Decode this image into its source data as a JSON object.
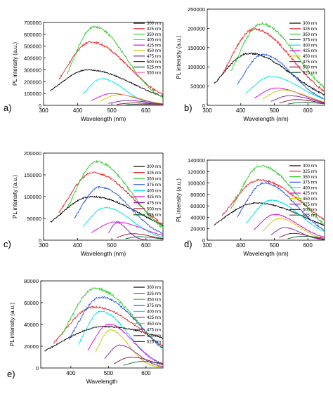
{
  "colors": {
    "300 nm": "#000000",
    "325 nm": "#e8262b",
    "350 nm": "#33cc33",
    "375 nm": "#2b55e0",
    "400 nm": "#00e5e5",
    "425 nm": "#e000e0",
    "450 nm": "#c8c800",
    "475 nm": "#7a1fb0",
    "500 nm": "#8b0a2a",
    "525 nm": "#0a5c2a",
    "550 nm": "#ff66b3"
  },
  "chart_data": [
    {
      "panel_label": "a)",
      "type": "line",
      "xlabel": "Wavelength (nm)",
      "ylabel": "PL intensity (a.u.)",
      "xlim": [
        300,
        650
      ],
      "ylim": [
        0,
        700000
      ],
      "xticks": [
        "300",
        "400",
        "500",
        "600"
      ],
      "yticks": [
        "0",
        "100000",
        "200000",
        "300000",
        "400000",
        "500000",
        "600000",
        "700000"
      ],
      "legend_position": "top-right",
      "series": [
        {
          "name": "300 nm",
          "start": 320,
          "peak": 430,
          "value": 300000
        },
        {
          "name": "325 nm",
          "start": 345,
          "peak": 438,
          "value": 535000
        },
        {
          "name": "350 nm",
          "start": 370,
          "peak": 448,
          "value": 665000
        },
        {
          "name": "400 nm",
          "start": 415,
          "peak": 470,
          "value": 225000
        },
        {
          "name": "425 nm",
          "start": 440,
          "peak": 500,
          "value": 100000
        },
        {
          "name": "450 nm",
          "start": 465,
          "peak": 520,
          "value": 90000
        },
        {
          "name": "475 nm",
          "start": 490,
          "peak": 545,
          "value": 40000
        },
        {
          "name": "500 nm",
          "start": 515,
          "peak": 565,
          "value": 20000
        },
        {
          "name": "525 nm",
          "start": 540,
          "peak": 585,
          "value": 10000
        },
        {
          "name": "550 nm",
          "start": 565,
          "peak": 605,
          "value": 5000
        }
      ]
    },
    {
      "panel_label": "b)",
      "type": "line",
      "xlabel": "Wavelength (nm)",
      "ylabel": "PL intensity (a.u.)",
      "xlim": [
        300,
        650
      ],
      "ylim": [
        0,
        250000
      ],
      "xticks": [
        "300",
        "400",
        "500",
        "600"
      ],
      "yticks": [
        "0",
        "50000",
        "100000",
        "150000",
        "200000",
        "250000"
      ],
      "legend_position": "top-right",
      "series": [
        {
          "name": "300 nm",
          "start": 320,
          "peak": 425,
          "value": 135000
        },
        {
          "name": "325 nm",
          "start": 345,
          "peak": 440,
          "value": 198000
        },
        {
          "name": "350 nm",
          "start": 370,
          "peak": 460,
          "value": 212000
        },
        {
          "name": "375 nm",
          "start": 390,
          "peak": 465,
          "value": 132000
        },
        {
          "name": "400 nm",
          "start": 415,
          "peak": 490,
          "value": 75000
        },
        {
          "name": "425 nm",
          "start": 440,
          "peak": 505,
          "value": 45000
        },
        {
          "name": "450 nm",
          "start": 465,
          "peak": 525,
          "value": 40000
        },
        {
          "name": "475 nm",
          "start": 490,
          "peak": 545,
          "value": 25000
        },
        {
          "name": "500 nm",
          "start": 515,
          "peak": 565,
          "value": 15000
        },
        {
          "name": "525 nm",
          "start": 540,
          "peak": 585,
          "value": 8000
        }
      ]
    },
    {
      "panel_label": "c)",
      "type": "line",
      "xlabel": "Wavelength (nm)",
      "ylabel": "PL intensity (a.u.)",
      "xlim": [
        300,
        650
      ],
      "ylim": [
        0,
        200000
      ],
      "xticks": [
        "300",
        "400",
        "500",
        "600"
      ],
      "yticks": [
        "0",
        "50000",
        "100000",
        "150000",
        "200000"
      ],
      "legend_position": "top-right",
      "series": [
        {
          "name": "300 nm",
          "start": 320,
          "peak": 440,
          "value": 100000
        },
        {
          "name": "325 nm",
          "start": 345,
          "peak": 445,
          "value": 155000
        },
        {
          "name": "350 nm",
          "start": 370,
          "peak": 455,
          "value": 180000
        },
        {
          "name": "375 nm",
          "start": 390,
          "peak": 465,
          "value": 122000
        },
        {
          "name": "400 nm",
          "start": 415,
          "peak": 480,
          "value": 75000
        },
        {
          "name": "425 nm",
          "start": 440,
          "peak": 510,
          "value": 42000
        },
        {
          "name": "475 nm",
          "start": 490,
          "peak": 515,
          "value": 40000
        },
        {
          "name": "500 nm",
          "start": 515,
          "peak": 560,
          "value": 15000
        },
        {
          "name": "525 nm",
          "start": 540,
          "peak": 580,
          "value": 8000
        }
      ]
    },
    {
      "panel_label": "d)",
      "type": "line",
      "xlabel": "Wavelength (nm)",
      "ylabel": "PL intensity (a.u.)",
      "xlim": [
        300,
        650
      ],
      "ylim": [
        0,
        140000
      ],
      "xticks": [
        "300",
        "400",
        "500",
        "600"
      ],
      "yticks": [
        "0",
        "20000",
        "40000",
        "60000",
        "80000",
        "100000",
        "120000",
        "140000"
      ],
      "legend_position": "top-right",
      "series": [
        {
          "name": "300 nm",
          "start": 320,
          "peak": 445,
          "value": 65000
        },
        {
          "name": "325 nm",
          "start": 345,
          "peak": 455,
          "value": 105000
        },
        {
          "name": "350 nm",
          "start": 370,
          "peak": 460,
          "value": 130000
        },
        {
          "name": "375 nm",
          "start": 390,
          "peak": 470,
          "value": 100000
        },
        {
          "name": "400 nm",
          "start": 415,
          "peak": 490,
          "value": 70000
        },
        {
          "name": "425 nm",
          "start": 440,
          "peak": 500,
          "value": 45000
        },
        {
          "name": "450 nm",
          "start": 465,
          "peak": 515,
          "value": 38000
        },
        {
          "name": "475 nm",
          "start": 490,
          "peak": 530,
          "value": 22000
        },
        {
          "name": "500 nm",
          "start": 515,
          "peak": 555,
          "value": 12000
        },
        {
          "name": "525 nm",
          "start": 540,
          "peak": 585,
          "value": 7000
        }
      ]
    },
    {
      "panel_label": "e)",
      "type": "line",
      "xlabel": "Wavelength",
      "ylabel": "PL intensity (a.u.)",
      "xlim": [
        320,
        645
      ],
      "ylim": [
        0,
        80000
      ],
      "xticks": [
        "400",
        "500",
        "600"
      ],
      "yticks": [
        "0",
        "20000",
        "40000",
        "60000",
        "80000"
      ],
      "legend_position": "top-right",
      "series": [
        {
          "name": "300 nm",
          "start": 330,
          "peak": 490,
          "value": 38000
        },
        {
          "name": "325 nm",
          "start": 355,
          "peak": 462,
          "value": 56000
        },
        {
          "name": "350 nm",
          "start": 375,
          "peak": 465,
          "value": 73000
        },
        {
          "name": "375 nm",
          "start": 395,
          "peak": 480,
          "value": 65000
        },
        {
          "name": "400 nm",
          "start": 420,
          "peak": 480,
          "value": 52000
        },
        {
          "name": "425 nm",
          "start": 445,
          "peak": 500,
          "value": 40000
        },
        {
          "name": "450 nm",
          "start": 465,
          "peak": 505,
          "value": 35000
        },
        {
          "name": "475 nm",
          "start": 490,
          "peak": 530,
          "value": 21000
        },
        {
          "name": "500 nm",
          "start": 515,
          "peak": 560,
          "value": 10000
        },
        {
          "name": "525 nm",
          "start": 540,
          "peak": 590,
          "value": 6000
        }
      ]
    }
  ]
}
